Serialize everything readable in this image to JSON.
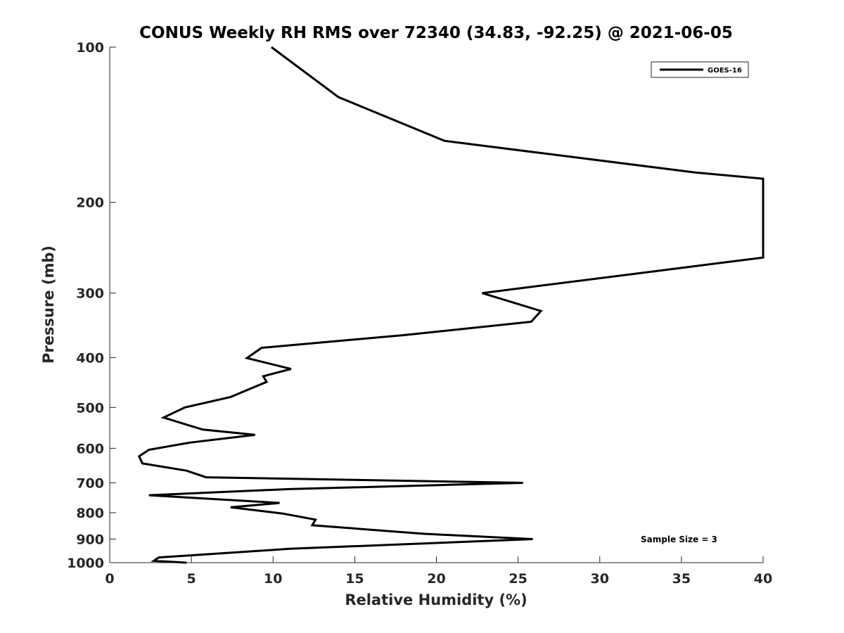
{
  "chart_data": {
    "type": "line",
    "title": "CONUS Weekly RH RMS over 72340 (34.83, -92.25) @ 2021-06-05",
    "xlabel": "Relative Humidity (%)",
    "ylabel": "Pressure (mb)",
    "xlim": [
      0,
      40
    ],
    "ylim": [
      100,
      1000
    ],
    "yscale": "log",
    "yreversed": true,
    "xticks": [
      "0",
      "5",
      "10",
      "15",
      "20",
      "25",
      "30",
      "35",
      "40"
    ],
    "yticks": [
      "100",
      "200",
      "300",
      "400",
      "500",
      "600",
      "700",
      "800",
      "900",
      "1000"
    ],
    "grid": false,
    "legend": {
      "location": "top-right",
      "entries": [
        "GOES-16"
      ]
    },
    "annotation": "Sample Size = 3",
    "series": [
      {
        "name": "GOES-16",
        "color": "#000000",
        "points": [
          [
            9.9,
            100
          ],
          [
            14.0,
            125
          ],
          [
            20.5,
            152
          ],
          [
            35.8,
            175
          ],
          [
            40.0,
            180
          ],
          [
            40.0,
            256
          ],
          [
            22.8,
            300
          ],
          [
            26.4,
            325
          ],
          [
            25.8,
            341
          ],
          [
            18.0,
            362
          ],
          [
            9.3,
            383
          ],
          [
            8.4,
            401
          ],
          [
            11.1,
            421
          ],
          [
            9.4,
            435
          ],
          [
            9.6,
            446
          ],
          [
            7.4,
            477
          ],
          [
            4.6,
            500
          ],
          [
            3.3,
            523
          ],
          [
            5.7,
            552
          ],
          [
            8.9,
            565
          ],
          [
            4.9,
            585
          ],
          [
            2.4,
            604
          ],
          [
            1.8,
            622
          ],
          [
            2.0,
            642
          ],
          [
            4.7,
            663
          ],
          [
            5.9,
            683
          ],
          [
            25.3,
            700
          ],
          [
            11.0,
            720
          ],
          [
            2.4,
            740
          ],
          [
            10.4,
            766
          ],
          [
            7.4,
            781
          ],
          [
            10.6,
            803
          ],
          [
            12.6,
            825
          ],
          [
            12.4,
            846
          ],
          [
            19.2,
            879
          ],
          [
            25.9,
            900
          ],
          [
            11.0,
            940
          ],
          [
            3.0,
            977
          ],
          [
            2.7,
            992
          ],
          [
            4.7,
            1000
          ]
        ]
      }
    ]
  }
}
